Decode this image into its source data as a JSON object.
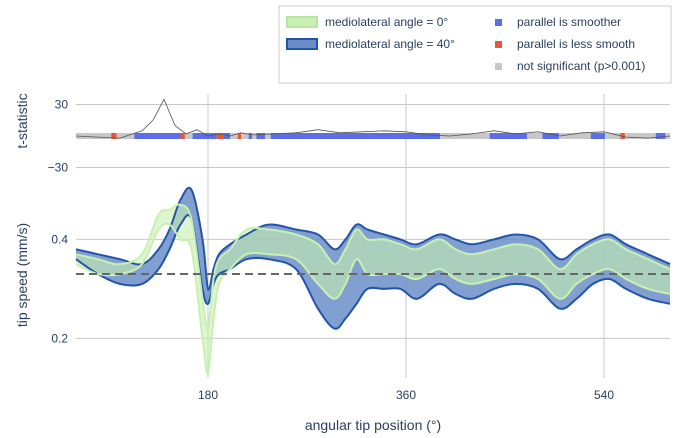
{
  "chart_data": {
    "type": "area",
    "colors": {
      "band_0": "#c8f0b0",
      "band_0_line": "#c8f0b0",
      "band_40": "#6b8ec8",
      "band_40_line": "#2255aa",
      "overlap": "#9cc8b8",
      "smoother": "#5a6ee8",
      "less_smooth": "#e8553a",
      "not_significant": "#c8c8c8",
      "tstat_line": "#555555",
      "mean_line": "#666666",
      "grid": "#c8c8c8"
    },
    "legend": {
      "placement": "top-right",
      "entries": [
        {
          "label": "mediolateral angle = 0°",
          "kind": "band",
          "color": "#c8f0b0",
          "line": "#b8e6a0"
        },
        {
          "label": "mediolateral angle = 40°",
          "kind": "band",
          "color": "#6b8ec8",
          "line": "#2255aa"
        },
        {
          "label": "parallel is smoother",
          "kind": "square",
          "color": "#5a6ee8"
        },
        {
          "label": "parallel is less smooth",
          "kind": "square",
          "color": "#e8553a"
        },
        {
          "label": "not significant (p>0.001)",
          "kind": "square",
          "color": "#c8c8c8"
        }
      ]
    },
    "x_axis": {
      "title": "angular tip position (°)",
      "range": [
        60,
        600
      ],
      "ticks": [
        180,
        360,
        540
      ],
      "tick_labels": [
        "180",
        "360",
        "540"
      ],
      "grid": true
    },
    "top_panel": {
      "ylabel": "t-statistic",
      "ylim": [
        -40,
        40
      ],
      "ticks": [
        30,
        -30
      ],
      "tick_labels": [
        "30",
        "−30"
      ],
      "t_statistic": {
        "x": [
          60,
          80,
          100,
          120,
          130,
          140,
          150,
          160,
          170,
          180,
          190,
          200,
          210,
          220,
          240,
          260,
          280,
          300,
          320,
          340,
          360,
          380,
          400,
          420,
          440,
          460,
          480,
          500,
          520,
          540,
          560,
          580,
          600
        ],
        "y": [
          0,
          -1,
          -2,
          5,
          15,
          35,
          10,
          2,
          6,
          0,
          2,
          0,
          3,
          1,
          2,
          3,
          6,
          3,
          4,
          5,
          4,
          1,
          0,
          2,
          5,
          2,
          4,
          0,
          3,
          4,
          -1,
          -2,
          0
        ]
      },
      "significance_segments": [
        {
          "from": 60,
          "to": 92,
          "status": "not_significant"
        },
        {
          "from": 92,
          "to": 97,
          "status": "less_smooth"
        },
        {
          "from": 97,
          "to": 113,
          "status": "not_significant"
        },
        {
          "from": 113,
          "to": 155,
          "status": "smoother"
        },
        {
          "from": 155,
          "to": 159,
          "status": "less_smooth"
        },
        {
          "from": 159,
          "to": 166,
          "status": "not_significant"
        },
        {
          "from": 166,
          "to": 188,
          "status": "smoother"
        },
        {
          "from": 188,
          "to": 194,
          "status": "less_smooth"
        },
        {
          "from": 194,
          "to": 200,
          "status": "smoother"
        },
        {
          "from": 200,
          "to": 207,
          "status": "not_significant"
        },
        {
          "from": 207,
          "to": 210,
          "status": "less_smooth"
        },
        {
          "from": 210,
          "to": 217,
          "status": "not_significant"
        },
        {
          "from": 217,
          "to": 220,
          "status": "smoother"
        },
        {
          "from": 220,
          "to": 224,
          "status": "not_significant"
        },
        {
          "from": 224,
          "to": 232,
          "status": "smoother"
        },
        {
          "from": 232,
          "to": 237,
          "status": "not_significant"
        },
        {
          "from": 237,
          "to": 391,
          "status": "smoother"
        },
        {
          "from": 391,
          "to": 436,
          "status": "not_significant"
        },
        {
          "from": 436,
          "to": 470,
          "status": "smoother"
        },
        {
          "from": 470,
          "to": 484,
          "status": "not_significant"
        },
        {
          "from": 484,
          "to": 499,
          "status": "smoother"
        },
        {
          "from": 499,
          "to": 528,
          "status": "not_significant"
        },
        {
          "from": 528,
          "to": 541,
          "status": "smoother"
        },
        {
          "from": 541,
          "to": 555,
          "status": "not_significant"
        },
        {
          "from": 555,
          "to": 559,
          "status": "less_smooth"
        },
        {
          "from": 559,
          "to": 587,
          "status": "not_significant"
        },
        {
          "from": 587,
          "to": 596,
          "status": "smoother"
        },
        {
          "from": 596,
          "to": 600,
          "status": "not_significant"
        }
      ]
    },
    "bottom_panel": {
      "ylabel": "tip speed (mm/s)",
      "ylim": [
        0.12,
        0.52
      ],
      "ticks": [
        0.4,
        0.2
      ],
      "tick_labels": [
        "0.4",
        "0.2"
      ],
      "mean_reference": 0.33,
      "x": [
        60,
        80,
        100,
        120,
        135,
        145,
        155,
        165,
        175,
        180,
        185,
        190,
        200,
        215,
        235,
        260,
        280,
        295,
        305,
        315,
        325,
        340,
        355,
        370,
        390,
        405,
        420,
        440,
        460,
        480,
        500,
        515,
        530,
        545,
        560,
        580,
        600
      ],
      "band_0": {
        "upper": [
          0.37,
          0.36,
          0.35,
          0.37,
          0.45,
          0.46,
          0.47,
          0.44,
          0.28,
          0.22,
          0.32,
          0.36,
          0.38,
          0.42,
          0.42,
          0.41,
          0.39,
          0.35,
          0.38,
          0.42,
          0.4,
          0.4,
          0.39,
          0.38,
          0.4,
          0.38,
          0.37,
          0.38,
          0.39,
          0.38,
          0.34,
          0.37,
          0.39,
          0.4,
          0.38,
          0.36,
          0.34
        ],
        "lower": [
          0.35,
          0.33,
          0.33,
          0.35,
          0.42,
          0.43,
          0.4,
          0.38,
          0.2,
          0.13,
          0.24,
          0.31,
          0.34,
          0.37,
          0.37,
          0.36,
          0.31,
          0.28,
          0.31,
          0.36,
          0.33,
          0.33,
          0.33,
          0.32,
          0.34,
          0.32,
          0.31,
          0.32,
          0.33,
          0.32,
          0.28,
          0.31,
          0.33,
          0.34,
          0.32,
          0.3,
          0.29
        ]
      },
      "band_40": {
        "upper": [
          0.38,
          0.37,
          0.36,
          0.35,
          0.38,
          0.42,
          0.48,
          0.5,
          0.4,
          0.3,
          0.34,
          0.37,
          0.39,
          0.41,
          0.43,
          0.42,
          0.41,
          0.38,
          0.4,
          0.43,
          0.42,
          0.41,
          0.4,
          0.39,
          0.41,
          0.4,
          0.39,
          0.4,
          0.41,
          0.4,
          0.36,
          0.38,
          0.4,
          0.41,
          0.39,
          0.37,
          0.35
        ],
        "lower": [
          0.36,
          0.33,
          0.31,
          0.31,
          0.34,
          0.38,
          0.43,
          0.44,
          0.3,
          0.27,
          0.31,
          0.33,
          0.34,
          0.36,
          0.36,
          0.34,
          0.26,
          0.22,
          0.24,
          0.27,
          0.3,
          0.3,
          0.3,
          0.28,
          0.31,
          0.29,
          0.28,
          0.3,
          0.31,
          0.3,
          0.26,
          0.28,
          0.31,
          0.32,
          0.3,
          0.28,
          0.27
        ]
      }
    }
  }
}
